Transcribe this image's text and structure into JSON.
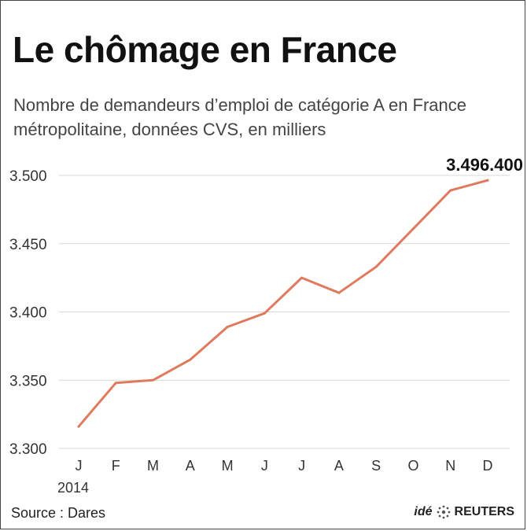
{
  "title": "Le chômage en France",
  "subtitle": "Nombre de demandeurs d’emploi de catégorie A en France métropolitaine, données CVS, en milliers",
  "source": "Source : Dares",
  "brand": {
    "ide": "idé",
    "reuters": "REUTERS"
  },
  "colors": {
    "line": "#e07a5f",
    "grid": "#d8d8d8",
    "text": "#333333"
  },
  "chart_data": {
    "type": "line",
    "categories": [
      "J",
      "F",
      "M",
      "A",
      "M",
      "J",
      "J",
      "A",
      "S",
      "O",
      "N",
      "D"
    ],
    "year_label": "2014",
    "series": [
      {
        "values": [
          3316,
          3348,
          3350,
          3365,
          3389,
          3399,
          3425,
          3414,
          3433,
          3461,
          3489,
          3496.4
        ]
      }
    ],
    "yticks": [
      3300,
      3350,
      3400,
      3450,
      3500
    ],
    "ytick_labels": [
      "3.300",
      "3.350",
      "3.400",
      "3.450",
      "3.500"
    ],
    "ylim": [
      3300,
      3500
    ],
    "last_value_label": "3.496.400",
    "grid": true
  }
}
